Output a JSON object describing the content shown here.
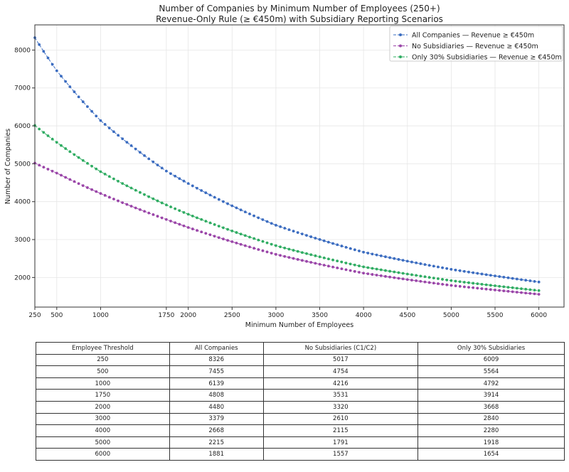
{
  "chart_data": {
    "type": "line",
    "title": "Number of Companies by Minimum Number of Employees (250+)",
    "subtitle": "Revenue-Only Rule (≥ €450m) with Subsidiary Reporting Scenarios",
    "xlabel": "Minimum Number of Employees",
    "ylabel": "Number of Companies",
    "xlim": [
      250,
      6287
    ],
    "ylim": [
      1219,
      8664
    ],
    "xticks": [
      250,
      500,
      1000,
      1750,
      2000,
      2500,
      3000,
      3500,
      4000,
      4500,
      5000,
      5500,
      6000
    ],
    "yticks": [
      2000,
      3000,
      4000,
      5000,
      6000,
      7000,
      8000
    ],
    "grid": true,
    "legend_position": "top-right",
    "x": [
      250,
      500,
      1000,
      1750,
      2000,
      3000,
      4000,
      5000,
      6000
    ],
    "series": [
      {
        "name": "All Companies — Revenue ≥ €450m",
        "color": "#3b6cc0",
        "values": [
          8326,
          7455,
          6139,
          4808,
          4480,
          3379,
          2668,
          2215,
          1881
        ]
      },
      {
        "name": "No Subsidiaries — Revenue ≥ €450m",
        "color": "#9a45a8",
        "values": [
          5017,
          4754,
          4216,
          3531,
          3320,
          2610,
          2115,
          1791,
          1557
        ]
      },
      {
        "name": "Only 30% Subsidiaries — Revenue ≥ €450m",
        "color": "#2fac62",
        "values": [
          6009,
          5564,
          4792,
          3914,
          3668,
          2840,
          2280,
          1918,
          1654
        ]
      }
    ]
  },
  "table": {
    "headers": [
      "Employee Threshold",
      "All Companies",
      "No Subsidiaries (C1/C2)",
      "Only 30% Subsidiaries"
    ],
    "rows": [
      [
        "250",
        "8326",
        "5017",
        "6009"
      ],
      [
        "500",
        "7455",
        "4754",
        "5564"
      ],
      [
        "1000",
        "6139",
        "4216",
        "4792"
      ],
      [
        "1750",
        "4808",
        "3531",
        "3914"
      ],
      [
        "2000",
        "4480",
        "3320",
        "3668"
      ],
      [
        "3000",
        "3379",
        "2610",
        "2840"
      ],
      [
        "4000",
        "2668",
        "2115",
        "2280"
      ],
      [
        "5000",
        "2215",
        "1791",
        "1918"
      ],
      [
        "6000",
        "1881",
        "1557",
        "1654"
      ]
    ]
  }
}
